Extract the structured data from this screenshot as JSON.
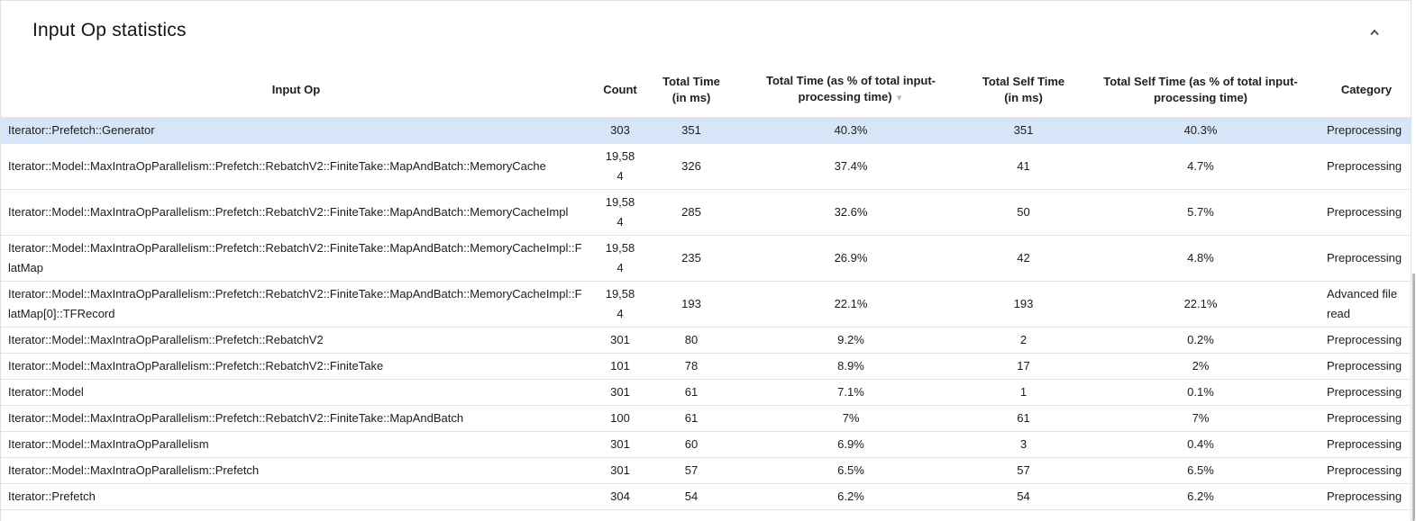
{
  "panel": {
    "title": "Input Op statistics",
    "collapse_icon": "chevron-up"
  },
  "table": {
    "columns": [
      {
        "id": "input_op",
        "label": "Input Op"
      },
      {
        "id": "count",
        "label": "Count"
      },
      {
        "id": "total_time",
        "label": "Total Time (in ms)"
      },
      {
        "id": "total_time_pct",
        "label": "Total Time (as % of total input-processing time)",
        "sort": "desc"
      },
      {
        "id": "self_time",
        "label": "Total Self Time (in ms)"
      },
      {
        "id": "self_time_pct",
        "label": "Total Self Time (as % of total input-processing time)"
      },
      {
        "id": "category",
        "label": "Category"
      }
    ],
    "sort_indicator": "▼",
    "selected_row": 0,
    "rows": [
      {
        "input_op": "Iterator::Prefetch::Generator",
        "count": "303",
        "total_time": "351",
        "total_time_pct": "40.3%",
        "self_time": "351",
        "self_time_pct": "40.3%",
        "category": "Preprocessing"
      },
      {
        "input_op": "Iterator::Model::MaxIntraOpParallelism::Prefetch::RebatchV2::FiniteTake::MapAndBatch::MemoryCache",
        "count": "19,584",
        "total_time": "326",
        "total_time_pct": "37.4%",
        "self_time": "41",
        "self_time_pct": "4.7%",
        "category": "Preprocessing"
      },
      {
        "input_op": "Iterator::Model::MaxIntraOpParallelism::Prefetch::RebatchV2::FiniteTake::MapAndBatch::MemoryCacheImpl",
        "count": "19,584",
        "total_time": "285",
        "total_time_pct": "32.6%",
        "self_time": "50",
        "self_time_pct": "5.7%",
        "category": "Preprocessing"
      },
      {
        "input_op": "Iterator::Model::MaxIntraOpParallelism::Prefetch::RebatchV2::FiniteTake::MapAndBatch::MemoryCacheImpl::FlatMap",
        "count": "19,584",
        "total_time": "235",
        "total_time_pct": "26.9%",
        "self_time": "42",
        "self_time_pct": "4.8%",
        "category": "Preprocessing"
      },
      {
        "input_op": "Iterator::Model::MaxIntraOpParallelism::Prefetch::RebatchV2::FiniteTake::MapAndBatch::MemoryCacheImpl::FlatMap[0]::TFRecord",
        "count": "19,584",
        "total_time": "193",
        "total_time_pct": "22.1%",
        "self_time": "193",
        "self_time_pct": "22.1%",
        "category": "Advanced file read"
      },
      {
        "input_op": "Iterator::Model::MaxIntraOpParallelism::Prefetch::RebatchV2",
        "count": "301",
        "total_time": "80",
        "total_time_pct": "9.2%",
        "self_time": "2",
        "self_time_pct": "0.2%",
        "category": "Preprocessing"
      },
      {
        "input_op": "Iterator::Model::MaxIntraOpParallelism::Prefetch::RebatchV2::FiniteTake",
        "count": "101",
        "total_time": "78",
        "total_time_pct": "8.9%",
        "self_time": "17",
        "self_time_pct": "2%",
        "category": "Preprocessing"
      },
      {
        "input_op": "Iterator::Model",
        "count": "301",
        "total_time": "61",
        "total_time_pct": "7.1%",
        "self_time": "1",
        "self_time_pct": "0.1%",
        "category": "Preprocessing"
      },
      {
        "input_op": "Iterator::Model::MaxIntraOpParallelism::Prefetch::RebatchV2::FiniteTake::MapAndBatch",
        "count": "100",
        "total_time": "61",
        "total_time_pct": "7%",
        "self_time": "61",
        "self_time_pct": "7%",
        "category": "Preprocessing"
      },
      {
        "input_op": "Iterator::Model::MaxIntraOpParallelism",
        "count": "301",
        "total_time": "60",
        "total_time_pct": "6.9%",
        "self_time": "3",
        "self_time_pct": "0.4%",
        "category": "Preprocessing"
      },
      {
        "input_op": "Iterator::Model::MaxIntraOpParallelism::Prefetch",
        "count": "301",
        "total_time": "57",
        "total_time_pct": "6.5%",
        "self_time": "57",
        "self_time_pct": "6.5%",
        "category": "Preprocessing"
      },
      {
        "input_op": "Iterator::Prefetch",
        "count": "304",
        "total_time": "54",
        "total_time_pct": "6.2%",
        "self_time": "54",
        "self_time_pct": "6.2%",
        "category": "Preprocessing"
      }
    ]
  },
  "colors": {
    "selected_row_bg": "#d6e6f8",
    "sort_icon": "#b7bbc1",
    "chevron_icon": "#4a4a4a",
    "scroll_thumb": "#b4b4b4",
    "border": "#e4e4e4"
  }
}
